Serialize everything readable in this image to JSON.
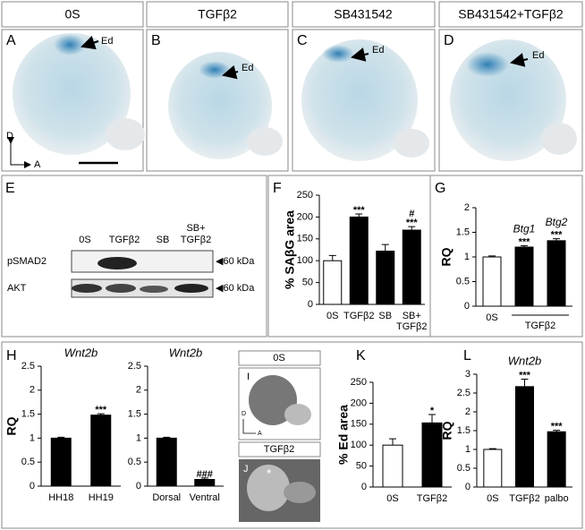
{
  "headers": [
    "0S",
    "TGFβ2",
    "SB431542",
    "SB431542+TGFβ2"
  ],
  "image_panels": [
    {
      "letter": "A",
      "arrow_label": "Ed"
    },
    {
      "letter": "B",
      "arrow_label": "Ed"
    },
    {
      "letter": "C",
      "arrow_label": "Ed"
    },
    {
      "letter": "D",
      "arrow_label": "Ed"
    }
  ],
  "orientation": {
    "dorsal": "D",
    "anterior": "A"
  },
  "blot": {
    "letter": "E",
    "lanes": [
      "0S",
      "TGFβ2",
      "SB",
      [
        "SB+",
        "TGFβ2"
      ]
    ],
    "rows": [
      "pSMAD2",
      "AKT"
    ],
    "marker": "◀60 kDa"
  },
  "insets": {
    "top": {
      "header": "0S",
      "letter": "I",
      "dorsal": "D",
      "anterior": "A"
    },
    "bottom": {
      "header": "TGFβ2",
      "letter": "J",
      "mark": "*"
    }
  },
  "chart_data": [
    {
      "type": "bar",
      "panel": "F",
      "ylabel": "% SAβG area",
      "categories": [
        "0S",
        "TGFβ2",
        "SB",
        [
          "SB+",
          "TGFβ2"
        ]
      ],
      "values": [
        100,
        200,
        122,
        170
      ],
      "errors": [
        12,
        7,
        15,
        8
      ],
      "colors": [
        "#ffffff",
        "#000000",
        "#000000",
        "#000000"
      ],
      "annotations": [
        null,
        [
          "***"
        ],
        null,
        [
          "#",
          "***"
        ]
      ],
      "ylim": [
        0,
        250
      ],
      "yticks": [
        0,
        50,
        100,
        150,
        200,
        250
      ]
    },
    {
      "type": "bar",
      "panel": "G",
      "ylabel": "RQ",
      "categories": [
        "0S",
        null,
        null
      ],
      "group_label": "TGFβ2",
      "bar_labels": [
        null,
        "Btg1",
        "Btg2"
      ],
      "values": [
        1.0,
        1.2,
        1.33
      ],
      "errors": [
        0.02,
        0.03,
        0.04
      ],
      "colors": [
        "#ffffff",
        "#000000",
        "#000000"
      ],
      "annotations": [
        null,
        [
          "***"
        ],
        [
          "***"
        ]
      ],
      "ylim": [
        0,
        2
      ],
      "yticks": [
        0,
        0.5,
        1,
        1.5,
        2
      ]
    },
    {
      "type": "bar",
      "panel": "H",
      "title": "Wnt2b",
      "ylabel": "RQ",
      "categories": [
        "HH18",
        "HH19"
      ],
      "values": [
        1.0,
        1.48
      ],
      "errors": [
        0.02,
        0.03
      ],
      "colors": [
        "#000000",
        "#000000"
      ],
      "annotations": [
        null,
        [
          "***"
        ]
      ],
      "ylim": [
        0,
        2.5
      ],
      "yticks": [
        0,
        0.5,
        1,
        1.5,
        2,
        2.5
      ]
    },
    {
      "type": "bar",
      "title": "Wnt2b",
      "categories": [
        "Dorsal",
        "Ventral"
      ],
      "values": [
        1.0,
        0.14
      ],
      "errors": [
        0.02,
        0.03
      ],
      "colors": [
        "#000000",
        "#000000"
      ],
      "annotations": [
        null,
        [
          "###"
        ]
      ],
      "ylim": [
        0,
        2.5
      ],
      "yticks": [
        0,
        0.5,
        1,
        1.5,
        2,
        2.5
      ]
    },
    {
      "type": "bar",
      "panel": "K",
      "ylabel": "% Ed area",
      "categories": [
        "0S",
        "TGFβ2"
      ],
      "values": [
        100,
        153
      ],
      "errors": [
        15,
        20
      ],
      "colors": [
        "#ffffff",
        "#000000"
      ],
      "annotations": [
        null,
        [
          "*"
        ]
      ],
      "ylim": [
        0,
        250
      ],
      "yticks": [
        0,
        50,
        100,
        150,
        200,
        250
      ]
    },
    {
      "type": "bar",
      "panel": "L",
      "title": "Wnt2b",
      "ylabel": "RQ",
      "categories": [
        "0S",
        "TGFβ2",
        "palbo"
      ],
      "values": [
        1.0,
        2.67,
        1.47
      ],
      "errors": [
        0.02,
        0.2,
        0.04
      ],
      "colors": [
        "#ffffff",
        "#000000",
        "#000000"
      ],
      "annotations": [
        null,
        [
          "***"
        ],
        [
          "***"
        ]
      ],
      "ylim": [
        0,
        3
      ],
      "yticks": [
        0,
        0.5,
        1,
        1.5,
        2,
        2.5,
        3
      ]
    }
  ]
}
